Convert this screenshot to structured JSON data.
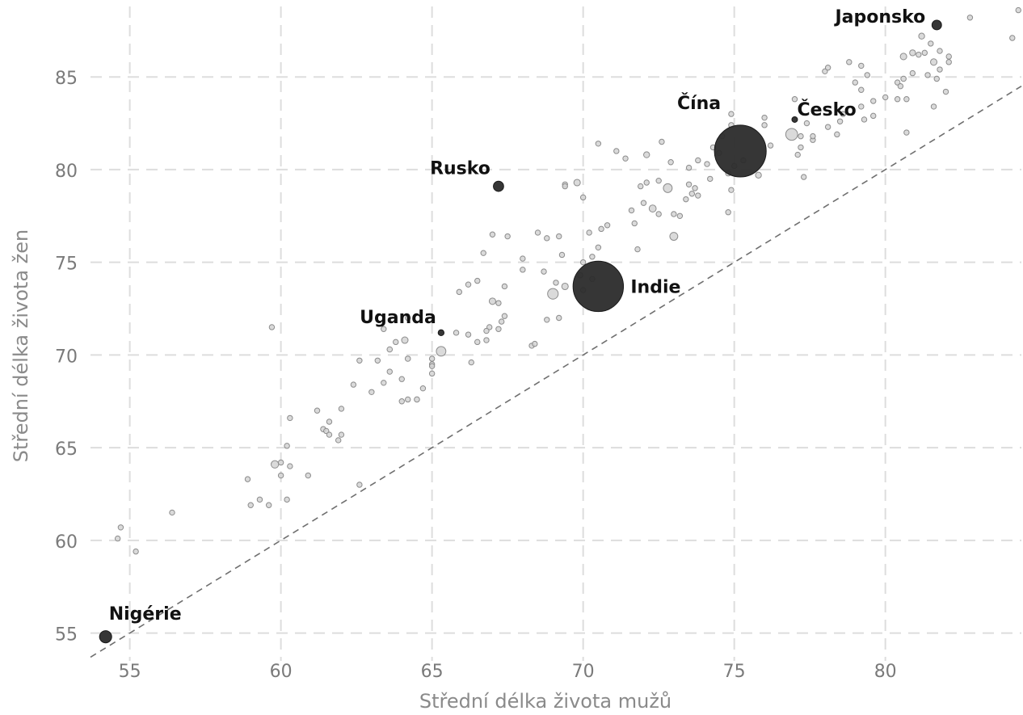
{
  "chart_data": {
    "type": "scatter",
    "title": "",
    "xlabel": "Střední délka života mužů",
    "ylabel": "Střední délka života žen",
    "xlim": [
      53.7,
      84.5
    ],
    "ylim": [
      53.5,
      88.8
    ],
    "xticks": [
      55,
      60,
      65,
      70,
      75,
      80
    ],
    "yticks": [
      55,
      60,
      65,
      70,
      75,
      80,
      85
    ],
    "grid": true,
    "reference_line": "y = x",
    "colors": {
      "highlight": "#2b2b2b",
      "other": "#d3d3d3",
      "outline": "#8c8c8c",
      "grid": "#dddddd",
      "reference": "#6f6f6f"
    },
    "highlights": [
      {
        "name": "Japonsko",
        "x": 81.7,
        "y": 87.8,
        "size": 1.3
      },
      {
        "name": "Česko",
        "x": 77.0,
        "y": 82.7,
        "size": 0.35
      },
      {
        "name": "Čína",
        "x": 75.2,
        "y": 81.0,
        "size": 38
      },
      {
        "name": "Rusko",
        "x": 67.2,
        "y": 79.1,
        "size": 1.5
      },
      {
        "name": "Indie",
        "x": 70.5,
        "y": 73.7,
        "size": 36
      },
      {
        "name": "Uganda",
        "x": 65.3,
        "y": 71.2,
        "size": 0.5
      },
      {
        "name": "Nigérie",
        "x": 54.2,
        "y": 54.8,
        "size": 2.1
      }
    ],
    "points": [
      [
        82.8,
        88.2,
        0.2
      ],
      [
        84.4,
        88.6,
        0.2
      ],
      [
        84.2,
        87.1,
        0.2
      ],
      [
        81.2,
        87.2,
        0.5
      ],
      [
        81.5,
        86.8,
        0.2
      ],
      [
        80.6,
        86.1,
        0.6
      ],
      [
        80.9,
        86.3,
        0.5
      ],
      [
        81.1,
        86.2,
        0.3
      ],
      [
        81.6,
        85.8,
        0.6
      ],
      [
        81.8,
        86.4,
        0.2
      ],
      [
        82.1,
        86.1,
        0.2
      ],
      [
        82.1,
        85.8,
        0.3
      ],
      [
        81.3,
        86.3,
        0.2
      ],
      [
        78.0,
        85.3,
        0.2
      ],
      [
        78.1,
        85.5,
        0.2
      ],
      [
        78.8,
        85.8,
        0.2
      ],
      [
        79.2,
        85.6,
        0.2
      ],
      [
        79.0,
        84.7,
        0.2
      ],
      [
        79.2,
        84.3,
        0.2
      ],
      [
        79.4,
        85.1,
        0.2
      ],
      [
        80.4,
        84.7,
        0.2
      ],
      [
        80.6,
        84.9,
        0.4
      ],
      [
        80.9,
        85.2,
        0.2
      ],
      [
        81.4,
        85.1,
        0.2
      ],
      [
        81.8,
        85.4,
        0.2
      ],
      [
        81.7,
        84.9,
        0.2
      ],
      [
        82.0,
        84.2,
        0.2
      ],
      [
        80.5,
        84.5,
        0.2
      ],
      [
        80.4,
        83.8,
        0.2
      ],
      [
        80.7,
        83.8,
        0.2
      ],
      [
        80.0,
        83.9,
        0.2
      ],
      [
        79.6,
        83.7,
        0.2
      ],
      [
        79.2,
        83.4,
        0.2
      ],
      [
        79.3,
        82.7,
        0.2
      ],
      [
        79.6,
        82.9,
        0.2
      ],
      [
        78.5,
        82.6,
        0.2
      ],
      [
        78.1,
        82.3,
        0.2
      ],
      [
        78.6,
        83.0,
        0.2
      ],
      [
        81.6,
        83.4,
        0.2
      ],
      [
        80.7,
        82.0,
        0.2
      ],
      [
        77.4,
        82.5,
        0.2
      ],
      [
        77.0,
        83.8,
        0.2
      ],
      [
        77.2,
        81.8,
        0.2
      ],
      [
        77.2,
        81.2,
        0.3
      ],
      [
        77.1,
        80.8,
        0.2
      ],
      [
        77.6,
        81.6,
        0.2
      ],
      [
        77.6,
        81.8,
        0.2
      ],
      [
        77.3,
        79.6,
        0.2
      ],
      [
        78.4,
        81.9,
        0.2
      ],
      [
        76.9,
        81.9,
        2.0
      ],
      [
        74.9,
        83.0,
        0.2
      ],
      [
        74.9,
        82.4,
        0.3
      ],
      [
        75.0,
        80.2,
        0.2
      ],
      [
        75.3,
        80.5,
        0.3
      ],
      [
        75.8,
        79.7,
        0.5
      ],
      [
        76.0,
        82.4,
        0.2
      ],
      [
        76.2,
        81.3,
        0.2
      ],
      [
        76.0,
        82.8,
        0.2
      ],
      [
        74.6,
        81.8,
        0.2
      ],
      [
        74.3,
        81.2,
        0.2
      ],
      [
        74.5,
        80.9,
        0.3
      ],
      [
        74.1,
        80.3,
        0.2
      ],
      [
        74.2,
        79.5,
        0.2
      ],
      [
        74.8,
        79.8,
        0.4
      ],
      [
        73.8,
        80.5,
        0.2
      ],
      [
        73.5,
        80.1,
        0.2
      ],
      [
        73.5,
        79.2,
        0.2
      ],
      [
        73.7,
        79.0,
        0.2
      ],
      [
        73.6,
        78.7,
        0.2
      ],
      [
        73.8,
        78.6,
        0.2
      ],
      [
        73.4,
        78.4,
        0.2
      ],
      [
        74.9,
        78.9,
        0.2
      ],
      [
        74.8,
        77.7,
        0.3
      ],
      [
        72.8,
        79.0,
        1.1
      ],
      [
        72.5,
        79.4,
        0.2
      ],
      [
        72.1,
        79.3,
        0.2
      ],
      [
        71.9,
        79.1,
        0.2
      ],
      [
        72.0,
        78.2,
        0.2
      ],
      [
        72.3,
        77.9,
        0.7
      ],
      [
        72.5,
        77.6,
        0.2
      ],
      [
        71.4,
        80.6,
        0.2
      ],
      [
        72.1,
        80.8,
        0.5
      ],
      [
        72.6,
        81.5,
        0.2
      ],
      [
        72.9,
        80.4,
        0.2
      ],
      [
        71.1,
        81.0,
        0.2
      ],
      [
        70.5,
        81.4,
        0.2
      ],
      [
        73.0,
        77.6,
        0.3
      ],
      [
        73.2,
        77.5,
        0.2
      ],
      [
        71.6,
        77.8,
        0.2
      ],
      [
        71.7,
        77.1,
        0.2
      ],
      [
        70.8,
        77.0,
        0.2
      ],
      [
        70.2,
        76.6,
        0.2
      ],
      [
        70.6,
        76.8,
        0.2
      ],
      [
        70.5,
        75.8,
        0.2
      ],
      [
        70.3,
        75.3,
        0.2
      ],
      [
        70.0,
        75.0,
        0.2
      ],
      [
        70.0,
        78.5,
        0.2
      ],
      [
        69.8,
        79.3,
        0.6
      ],
      [
        69.4,
        79.2,
        0.2
      ],
      [
        69.4,
        79.1,
        0.2
      ],
      [
        69.2,
        76.4,
        0.2
      ],
      [
        68.8,
        76.3,
        0.2
      ],
      [
        68.5,
        76.6,
        0.2
      ],
      [
        67.5,
        76.4,
        0.2
      ],
      [
        67.0,
        76.5,
        0.2
      ],
      [
        69.3,
        75.4,
        0.3
      ],
      [
        69.9,
        74.3,
        0.2
      ],
      [
        70.3,
        74.1,
        0.2
      ],
      [
        68.7,
        74.5,
        0.2
      ],
      [
        68.0,
        75.2,
        0.2
      ],
      [
        68.0,
        74.6,
        0.2
      ],
      [
        67.4,
        73.7,
        0.2
      ],
      [
        69.4,
        73.7,
        0.6
      ],
      [
        69.0,
        73.3,
        1.6
      ],
      [
        69.1,
        73.9,
        0.2
      ],
      [
        70.0,
        73.5,
        0.2
      ],
      [
        73.0,
        76.4,
        0.9
      ],
      [
        71.8,
        75.7,
        0.2
      ],
      [
        66.7,
        75.5,
        0.2
      ],
      [
        66.2,
        73.8,
        0.2
      ],
      [
        66.5,
        74.0,
        0.2
      ],
      [
        65.9,
        73.4,
        0.2
      ],
      [
        67.0,
        72.9,
        0.6
      ],
      [
        67.2,
        72.8,
        0.2
      ],
      [
        67.4,
        72.1,
        0.2
      ],
      [
        66.9,
        71.5,
        0.2
      ],
      [
        67.2,
        71.4,
        0.2
      ],
      [
        67.3,
        71.8,
        0.2
      ],
      [
        66.8,
        71.3,
        0.3
      ],
      [
        65.8,
        71.2,
        0.2
      ],
      [
        66.2,
        71.1,
        0.2
      ],
      [
        66.5,
        70.7,
        0.2
      ],
      [
        66.8,
        70.8,
        0.2
      ],
      [
        66.3,
        69.6,
        0.2
      ],
      [
        65.0,
        69.5,
        0.2
      ],
      [
        65.0,
        69.8,
        0.2
      ],
      [
        65.3,
        70.2,
        1.3
      ],
      [
        68.3,
        70.5,
        0.2
      ],
      [
        68.8,
        71.9,
        0.2
      ],
      [
        69.2,
        72.0,
        0.2
      ],
      [
        64.2,
        72.0,
        0.2
      ],
      [
        64.1,
        70.8,
        0.6
      ],
      [
        63.8,
        70.7,
        0.2
      ],
      [
        63.6,
        70.3,
        0.4
      ],
      [
        64.2,
        69.8,
        0.4
      ],
      [
        63.2,
        69.7,
        0.3
      ],
      [
        62.6,
        69.7,
        0.3
      ],
      [
        63.6,
        69.1,
        0.2
      ],
      [
        64.0,
        68.7,
        0.2
      ],
      [
        63.4,
        68.5,
        0.2
      ],
      [
        63.0,
        68.0,
        0.2
      ],
      [
        64.5,
        67.6,
        0.4
      ],
      [
        64.2,
        67.6,
        0.2
      ],
      [
        64.0,
        67.5,
        0.2
      ],
      [
        63.4,
        71.4,
        0.2
      ],
      [
        62.0,
        67.1,
        0.3
      ],
      [
        61.4,
        66.0,
        0.4
      ],
      [
        61.6,
        66.4,
        0.2
      ],
      [
        61.2,
        67.0,
        0.2
      ],
      [
        60.3,
        66.6,
        0.3
      ],
      [
        61.5,
        65.9,
        0.2
      ],
      [
        61.6,
        65.7,
        0.2
      ],
      [
        61.9,
        65.4,
        0.3
      ],
      [
        62.0,
        65.7,
        0.2
      ],
      [
        60.2,
        65.1,
        0.2
      ],
      [
        59.8,
        64.1,
        0.8
      ],
      [
        60.0,
        64.2,
        0.2
      ],
      [
        60.3,
        64.0,
        0.2
      ],
      [
        60.0,
        63.5,
        0.2
      ],
      [
        60.9,
        63.5,
        0.2
      ],
      [
        58.9,
        63.3,
        0.3
      ],
      [
        62.6,
        63.0,
        0.2
      ],
      [
        60.2,
        62.2,
        0.3
      ],
      [
        59.3,
        62.2,
        0.2
      ],
      [
        59.6,
        61.9,
        0.2
      ],
      [
        59.0,
        61.9,
        0.3
      ],
      [
        59.7,
        71.5,
        0.2
      ],
      [
        56.4,
        61.5,
        0.2
      ],
      [
        54.7,
        60.7,
        0.2
      ],
      [
        54.6,
        60.1,
        0.2
      ],
      [
        55.2,
        59.4,
        0.2
      ],
      [
        62.4,
        68.4,
        0.2
      ],
      [
        64.7,
        68.2,
        0.2
      ],
      [
        65.0,
        69.0,
        0.2
      ],
      [
        65.0,
        69.4,
        0.2
      ],
      [
        68.4,
        70.6,
        0.2
      ]
    ]
  }
}
